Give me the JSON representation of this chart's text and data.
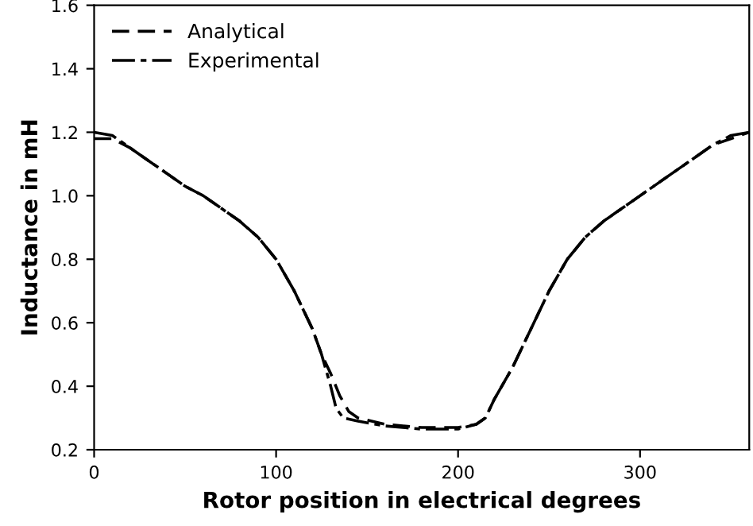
{
  "chart_data": {
    "type": "line",
    "xlabel": "Rotor position in electrical degrees",
    "ylabel": "Inductance in mH",
    "xlim": [
      0,
      360
    ],
    "ylim": [
      0.2,
      1.6
    ],
    "xticks": [
      0,
      100,
      200,
      300
    ],
    "yticks": [
      0.2,
      0.4,
      0.6,
      0.8,
      {
        "value": 1,
        "label": "1.0"
      },
      1.2,
      1.4,
      1.6
    ],
    "grid": false,
    "legend": "top left",
    "series": [
      {
        "name": "Analytical",
        "color": "#000000",
        "line_style": "dashed",
        "x": [
          0,
          10,
          20,
          30,
          40,
          50,
          60,
          70,
          80,
          90,
          100,
          110,
          120,
          125,
          130,
          135,
          140,
          145,
          160,
          180,
          200,
          210,
          215,
          220,
          230,
          240,
          250,
          260,
          270,
          280,
          290,
          300,
          310,
          320,
          330,
          340,
          350,
          360
        ],
        "values": [
          1.18,
          1.18,
          1.15,
          1.11,
          1.07,
          1.03,
          1.0,
          0.96,
          0.92,
          0.87,
          0.8,
          0.7,
          0.58,
          0.5,
          0.44,
          0.37,
          0.32,
          0.3,
          0.28,
          0.27,
          0.27,
          0.28,
          0.3,
          0.36,
          0.46,
          0.58,
          0.7,
          0.8,
          0.87,
          0.92,
          0.96,
          1.0,
          1.04,
          1.08,
          1.12,
          1.16,
          1.18,
          1.2
        ]
      },
      {
        "name": "Experimental",
        "color": "#000000",
        "line_style": "dashdot",
        "x": [
          0,
          10,
          20,
          30,
          40,
          50,
          60,
          70,
          80,
          90,
          100,
          110,
          120,
          125,
          130,
          133,
          137,
          145,
          160,
          180,
          200,
          210,
          215,
          220,
          230,
          240,
          250,
          260,
          270,
          280,
          290,
          300,
          310,
          320,
          330,
          340,
          350,
          360
        ],
        "values": [
          1.2,
          1.19,
          1.15,
          1.11,
          1.07,
          1.03,
          1.0,
          0.96,
          0.92,
          0.87,
          0.8,
          0.7,
          0.58,
          0.5,
          0.4,
          0.33,
          0.3,
          0.29,
          0.275,
          0.265,
          0.265,
          0.28,
          0.3,
          0.36,
          0.46,
          0.58,
          0.7,
          0.8,
          0.87,
          0.92,
          0.96,
          1.0,
          1.04,
          1.08,
          1.12,
          1.16,
          1.19,
          1.2
        ]
      }
    ]
  }
}
